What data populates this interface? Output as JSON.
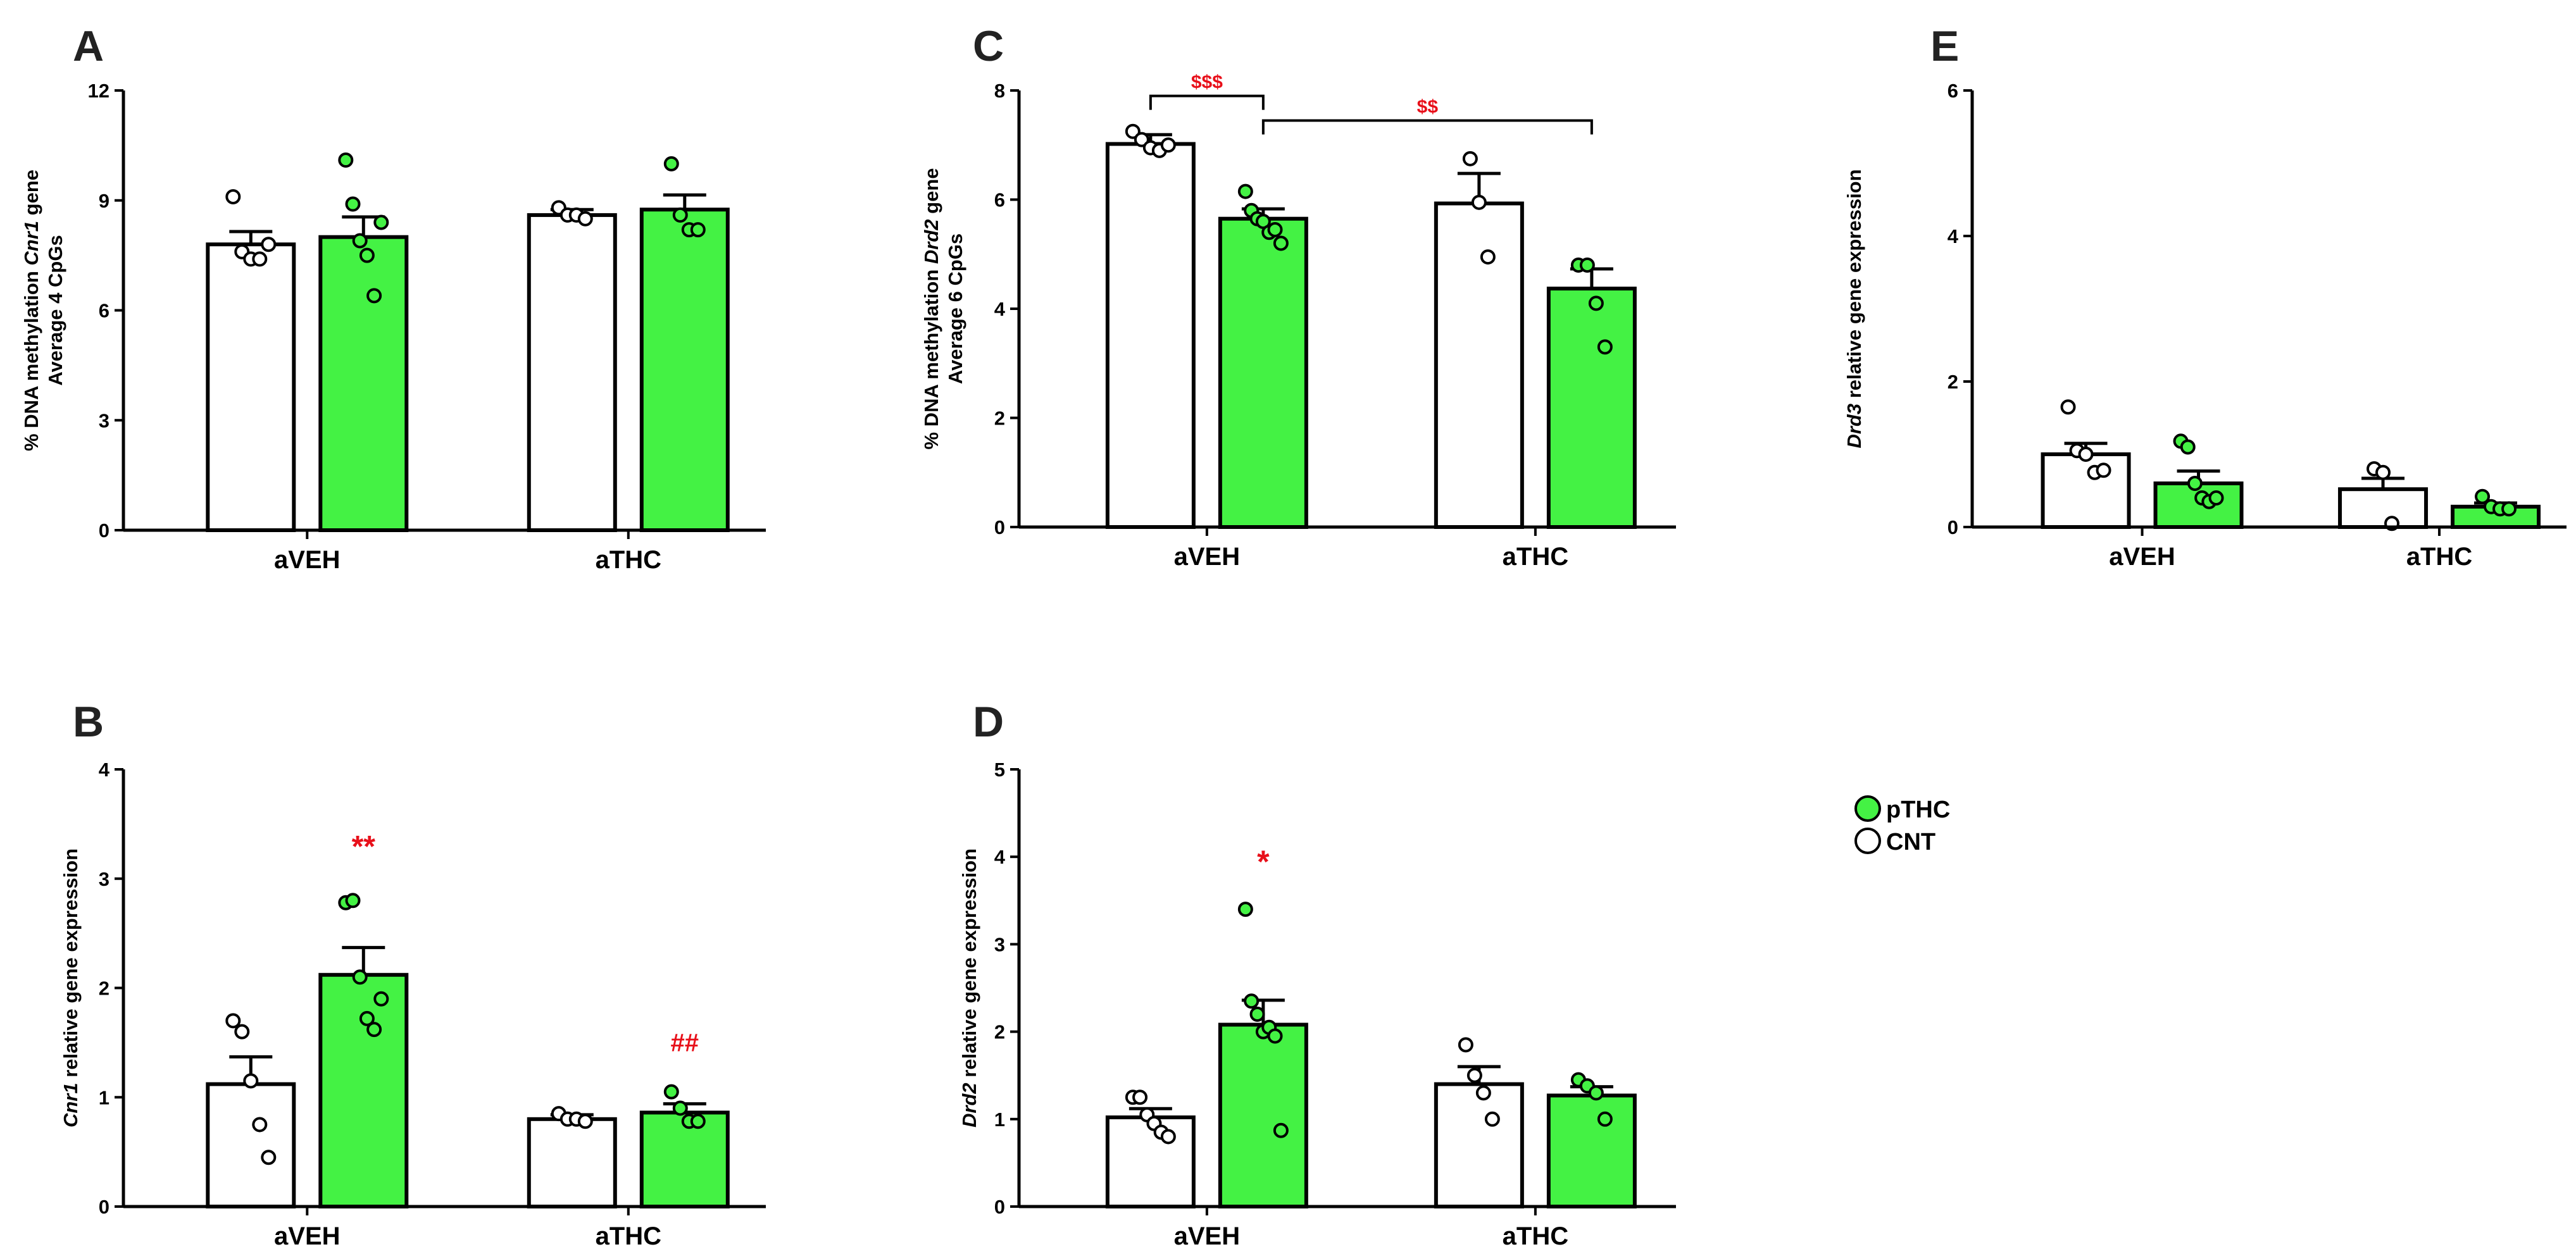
{
  "colors": {
    "cnt": "#ffffff",
    "pthc": "#44f244",
    "sig": "#e8101a",
    "ink": "#000000"
  },
  "legend": {
    "items": [
      {
        "label": "pTHC",
        "color": "#44f244"
      },
      {
        "label": "CNT",
        "color": "#ffffff"
      }
    ]
  },
  "chart_data": [
    {
      "panel": "A",
      "type": "bar",
      "ylabel_lines": [
        [
          {
            "t": "% DNA methylation "
          },
          {
            "t": "Cnr1",
            "i": true
          },
          {
            "t": " gene"
          }
        ],
        [
          {
            "t": "Average 4 CpGs"
          }
        ]
      ],
      "ylim": [
        0,
        12
      ],
      "yticks": [
        "0",
        "3",
        "6",
        "9",
        "12"
      ],
      "categories": [
        "aVEH",
        "aTHC"
      ],
      "series": [
        {
          "name": "CNT",
          "values": [
            7.8,
            8.6
          ],
          "sem": [
            0.35,
            0.15
          ],
          "points": [
            [
              9.1,
              7.6,
              7.4,
              7.4,
              7.8
            ],
            [
              8.8,
              8.6,
              8.6,
              8.5
            ]
          ]
        },
        {
          "name": "pTHC",
          "values": [
            8.0,
            8.75
          ],
          "sem": [
            0.55,
            0.4
          ],
          "points": [
            [
              10.1,
              8.9,
              7.9,
              7.5,
              6.4,
              8.4
            ],
            [
              10.0,
              8.6,
              8.2,
              8.2
            ]
          ]
        }
      ],
      "annotations": []
    },
    {
      "panel": "B",
      "type": "bar",
      "ylabel_lines": [
        [
          {
            "t": "Cnr1",
            "i": true
          },
          {
            "t": " relative gene expression"
          }
        ]
      ],
      "ylim": [
        0,
        4
      ],
      "yticks": [
        "0",
        "1",
        "2",
        "3",
        "4"
      ],
      "categories": [
        "aVEH",
        "aTHC"
      ],
      "series": [
        {
          "name": "CNT",
          "values": [
            1.12,
            0.8
          ],
          "sem": [
            0.25,
            0.04
          ],
          "points": [
            [
              1.7,
              1.6,
              1.15,
              0.75,
              0.45
            ],
            [
              0.85,
              0.8,
              0.8,
              0.78
            ]
          ]
        },
        {
          "name": "pTHC",
          "values": [
            2.12,
            0.86
          ],
          "sem": [
            0.25,
            0.08
          ],
          "points": [
            [
              2.78,
              2.8,
              2.1,
              1.72,
              1.62,
              1.9
            ],
            [
              1.05,
              0.9,
              0.78,
              0.78
            ]
          ]
        }
      ],
      "annotations": [
        {
          "text": "**",
          "series": 1,
          "category": 0,
          "y": 3.2,
          "size": 48
        },
        {
          "text": "##",
          "series": 1,
          "category": 1,
          "y": 1.42,
          "size": 40
        }
      ]
    },
    {
      "panel": "C",
      "type": "bar",
      "ylabel_lines": [
        [
          {
            "t": "% DNA methylation "
          },
          {
            "t": "Drd2",
            "i": true
          },
          {
            "t": " gene"
          }
        ],
        [
          {
            "t": "Average 6 CpGs"
          }
        ]
      ],
      "ylim": [
        0,
        8
      ],
      "yticks": [
        "0",
        "2",
        "4",
        "6",
        "8"
      ],
      "categories": [
        "aVEH",
        "aTHC"
      ],
      "series": [
        {
          "name": "CNT",
          "values": [
            7.02,
            5.93
          ],
          "sem": [
            0.17,
            0.55
          ],
          "points": [
            [
              7.25,
              7.1,
              6.95,
              6.9,
              7.0
            ],
            [
              6.75,
              5.95,
              4.95
            ]
          ]
        },
        {
          "name": "pTHC",
          "values": [
            5.65,
            4.37
          ],
          "sem": [
            0.18,
            0.36
          ],
          "points": [
            [
              6.15,
              5.8,
              5.65,
              5.6,
              5.4,
              5.45,
              5.2
            ],
            [
              4.8,
              4.8,
              4.1,
              3.3
            ]
          ]
        }
      ],
      "brackets": [
        {
          "from": [
            0,
            0
          ],
          "to": [
            0,
            1
          ],
          "y": 7.9,
          "text": "$$$"
        },
        {
          "from": [
            0,
            1
          ],
          "to": [
            1,
            1
          ],
          "y": 7.45,
          "text": "$$"
        }
      ],
      "annotations": []
    },
    {
      "panel": "D",
      "type": "bar",
      "ylabel_lines": [
        [
          {
            "t": "Drd2",
            "i": true
          },
          {
            "t": " relative gene expression"
          }
        ]
      ],
      "ylim": [
        0,
        5
      ],
      "yticks": [
        "0",
        "1",
        "2",
        "3",
        "4",
        "5"
      ],
      "categories": [
        "aVEH",
        "aTHC"
      ],
      "series": [
        {
          "name": "CNT",
          "values": [
            1.02,
            1.4
          ],
          "sem": [
            0.1,
            0.2
          ],
          "points": [
            [
              1.25,
              1.25,
              1.05,
              0.95,
              0.85,
              0.8
            ],
            [
              1.85,
              1.5,
              1.3,
              1.0
            ]
          ]
        },
        {
          "name": "pTHC",
          "values": [
            2.08,
            1.27
          ],
          "sem": [
            0.28,
            0.1
          ],
          "points": [
            [
              3.4,
              2.35,
              2.2,
              2.0,
              2.05,
              1.95,
              0.87
            ],
            [
              1.45,
              1.38,
              1.3,
              1.0
            ]
          ]
        }
      ],
      "annotations": [
        {
          "text": "*",
          "series": 1,
          "category": 0,
          "y": 3.82,
          "size": 50
        }
      ]
    },
    {
      "panel": "E",
      "type": "bar",
      "ylabel_lines": [
        [
          {
            "t": "Drd3",
            "i": true
          },
          {
            "t": " relative gene expression"
          }
        ]
      ],
      "ylim": [
        0,
        6
      ],
      "yticks": [
        "0",
        "2",
        "4",
        "6"
      ],
      "categories": [
        "aVEH",
        "aTHC"
      ],
      "series": [
        {
          "name": "CNT",
          "values": [
            1.0,
            0.52
          ],
          "sem": [
            0.15,
            0.15
          ],
          "points": [
            [
              1.65,
              1.05,
              1.0,
              0.75,
              0.78
            ],
            [
              0.8,
              0.75,
              0.05
            ]
          ]
        },
        {
          "name": "pTHC",
          "values": [
            0.6,
            0.28
          ],
          "sem": [
            0.17,
            0.05
          ],
          "points": [
            [
              1.18,
              1.1,
              0.6,
              0.4,
              0.35,
              0.4
            ],
            [
              0.42,
              0.28,
              0.25,
              0.25
            ]
          ]
        }
      ],
      "annotations": []
    }
  ]
}
